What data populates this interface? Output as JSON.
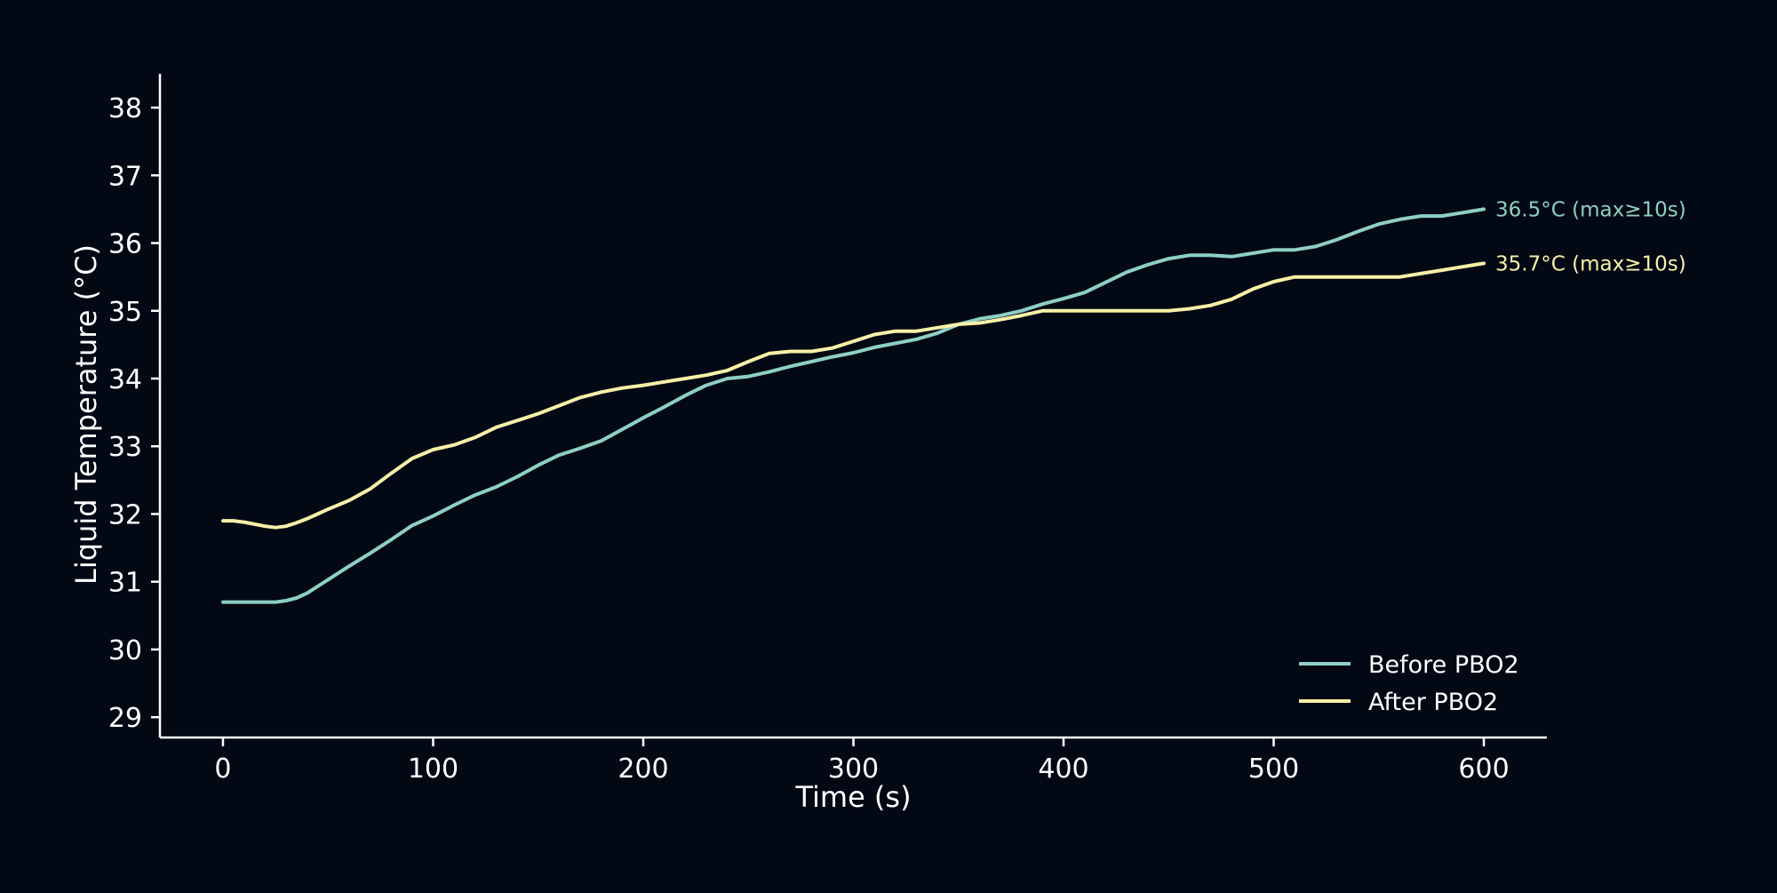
{
  "chart_data": {
    "type": "line",
    "title": "",
    "xlabel": "Time (s)",
    "ylabel": "Liquid Temperature (°C)",
    "xlim": [
      -30,
      630
    ],
    "ylim": [
      28.7,
      38.5
    ],
    "xticks": [
      0,
      100,
      200,
      300,
      400,
      500,
      600
    ],
    "yticks": [
      29,
      30,
      31,
      32,
      33,
      34,
      35,
      36,
      37,
      38
    ],
    "grid": false,
    "legend_position": "lower-right",
    "series": [
      {
        "name": "Before PBO2",
        "color": "#8ecfc4",
        "end_label": "36.5°C (max≥10s)",
        "x": [
          0,
          10,
          20,
          25,
          30,
          35,
          40,
          45,
          50,
          55,
          60,
          70,
          80,
          90,
          100,
          110,
          120,
          130,
          140,
          150,
          160,
          170,
          180,
          190,
          200,
          210,
          220,
          230,
          240,
          250,
          260,
          270,
          280,
          290,
          300,
          310,
          320,
          330,
          340,
          350,
          360,
          370,
          380,
          390,
          400,
          410,
          420,
          430,
          440,
          450,
          460,
          470,
          480,
          490,
          500,
          510,
          520,
          530,
          540,
          550,
          560,
          570,
          580,
          590,
          600
        ],
        "values": [
          30.7,
          30.7,
          30.7,
          30.7,
          30.72,
          30.76,
          30.83,
          30.93,
          31.03,
          31.13,
          31.23,
          31.42,
          31.62,
          31.83,
          31.97,
          32.13,
          32.28,
          32.4,
          32.55,
          32.72,
          32.87,
          32.97,
          33.08,
          33.25,
          33.42,
          33.58,
          33.75,
          33.9,
          34.0,
          34.03,
          34.1,
          34.18,
          34.25,
          34.32,
          34.38,
          34.46,
          34.52,
          34.58,
          34.67,
          34.8,
          34.88,
          34.93,
          35.0,
          35.1,
          35.18,
          35.27,
          35.42,
          35.57,
          35.68,
          35.77,
          35.82,
          35.82,
          35.8,
          35.85,
          35.9,
          35.9,
          35.95,
          36.05,
          36.17,
          36.28,
          36.35,
          36.4,
          36.4,
          36.45,
          36.5
        ]
      },
      {
        "name": "After PBO2",
        "color": "#f7f0a8",
        "end_label": "35.7°C (max≥10s)",
        "x": [
          0,
          5,
          10,
          15,
          20,
          25,
          30,
          35,
          40,
          45,
          50,
          60,
          70,
          80,
          90,
          100,
          110,
          120,
          130,
          140,
          150,
          160,
          170,
          180,
          190,
          200,
          210,
          220,
          230,
          240,
          250,
          260,
          270,
          280,
          290,
          300,
          310,
          320,
          330,
          340,
          350,
          360,
          370,
          380,
          390,
          400,
          410,
          420,
          430,
          440,
          450,
          460,
          470,
          480,
          490,
          500,
          510,
          520,
          530,
          540,
          550,
          560,
          570,
          580,
          590,
          600
        ],
        "values": [
          31.9,
          31.9,
          31.88,
          31.85,
          31.82,
          31.8,
          31.82,
          31.87,
          31.93,
          32.0,
          32.07,
          32.2,
          32.37,
          32.6,
          32.82,
          32.95,
          33.02,
          33.13,
          33.28,
          33.38,
          33.48,
          33.6,
          33.72,
          33.8,
          33.86,
          33.9,
          33.95,
          34.0,
          34.05,
          34.12,
          34.25,
          34.37,
          34.4,
          34.4,
          34.45,
          34.55,
          34.65,
          34.7,
          34.7,
          34.75,
          34.8,
          34.82,
          34.87,
          34.93,
          35.0,
          35.0,
          35.0,
          35.0,
          35.0,
          35.0,
          35.0,
          35.03,
          35.08,
          35.17,
          35.32,
          35.43,
          35.5,
          35.5,
          35.5,
          35.5,
          35.5,
          35.5,
          35.55,
          35.6,
          35.65,
          35.7
        ]
      }
    ]
  }
}
